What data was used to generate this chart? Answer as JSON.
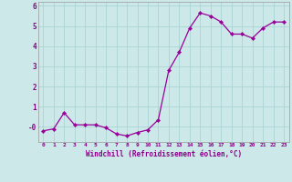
{
  "x": [
    0,
    1,
    2,
    3,
    4,
    5,
    6,
    7,
    8,
    9,
    10,
    11,
    12,
    13,
    14,
    15,
    16,
    17,
    18,
    19,
    20,
    21,
    22,
    23
  ],
  "y": [
    -0.2,
    -0.1,
    0.7,
    0.1,
    0.1,
    0.1,
    -0.05,
    -0.35,
    -0.45,
    -0.28,
    -0.15,
    0.35,
    2.8,
    3.7,
    4.9,
    5.65,
    5.5,
    5.2,
    4.6,
    4.6,
    4.4,
    4.9,
    5.2,
    5.2
  ],
  "line_color": "#990099",
  "marker": "D",
  "marker_size": 2.2,
  "line_width": 0.9,
  "background_color": "#cce8e8",
  "grid_color": "#aad4d4",
  "xlabel": "Windchill (Refroidissement éolien,°C)",
  "xlabel_color": "#880088",
  "tick_color": "#880088",
  "ylim": [
    -0.75,
    6.2
  ],
  "xlim": [
    -0.5,
    23.5
  ],
  "ytick_vals": [
    0,
    1,
    2,
    3,
    4,
    5,
    6
  ],
  "ytick_labels": [
    "-0",
    "1",
    "2",
    "3",
    "4",
    "5",
    "6"
  ],
  "xticks": [
    0,
    1,
    2,
    3,
    4,
    5,
    6,
    7,
    8,
    9,
    10,
    11,
    12,
    13,
    14,
    15,
    16,
    17,
    18,
    19,
    20,
    21,
    22,
    23
  ]
}
